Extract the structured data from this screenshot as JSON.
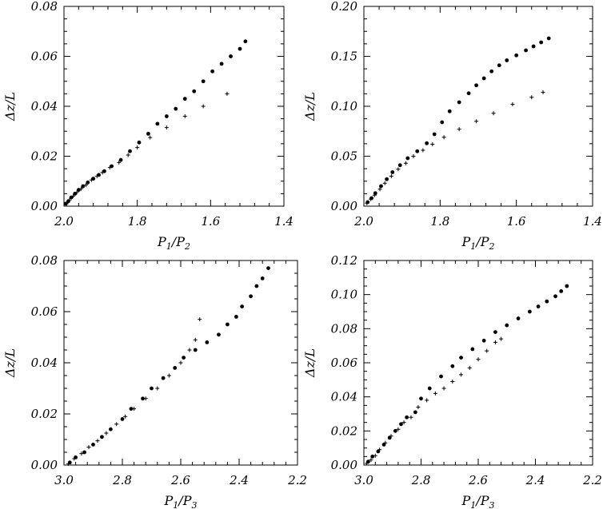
{
  "colors": {
    "background": "#ffffff",
    "ink": "#000000"
  },
  "chart_data": [
    {
      "type": "scatter",
      "title": "",
      "xlabel": "P1/P2",
      "ylabel": "Δz/L",
      "xlim": [
        2.0,
        1.4
      ],
      "ylim": [
        0.0,
        0.08
      ],
      "x_ticks": [
        "2.0",
        "1.8",
        "1.6",
        "1.4"
      ],
      "y_ticks": [
        "0.00",
        "0.02",
        "0.04",
        "0.06",
        "0.08"
      ],
      "grid": false,
      "series": [
        {
          "marker": "dot",
          "points": [
            [
              1.995,
              0.001
            ],
            [
              1.988,
              0.002
            ],
            [
              1.98,
              0.0035
            ],
            [
              1.97,
              0.005
            ],
            [
              1.96,
              0.0065
            ],
            [
              1.948,
              0.008
            ],
            [
              1.935,
              0.0095
            ],
            [
              1.92,
              0.011
            ],
            [
              1.905,
              0.0125
            ],
            [
              1.89,
              0.014
            ],
            [
              1.87,
              0.016
            ],
            [
              1.845,
              0.0185
            ],
            [
              1.82,
              0.022
            ],
            [
              1.795,
              0.0255
            ],
            [
              1.77,
              0.029
            ],
            [
              1.745,
              0.033
            ],
            [
              1.72,
              0.036
            ],
            [
              1.695,
              0.039
            ],
            [
              1.67,
              0.043
            ],
            [
              1.645,
              0.046
            ],
            [
              1.62,
              0.05
            ],
            [
              1.595,
              0.054
            ],
            [
              1.57,
              0.057
            ],
            [
              1.545,
              0.06
            ],
            [
              1.52,
              0.063
            ],
            [
              1.505,
              0.066
            ]
          ]
        },
        {
          "marker": "plus",
          "points": [
            [
              1.993,
              0.001
            ],
            [
              1.985,
              0.0025
            ],
            [
              1.975,
              0.004
            ],
            [
              1.965,
              0.0055
            ],
            [
              1.953,
              0.007
            ],
            [
              1.94,
              0.0085
            ],
            [
              1.925,
              0.0105
            ],
            [
              1.91,
              0.012
            ],
            [
              1.895,
              0.0135
            ],
            [
              1.875,
              0.0155
            ],
            [
              1.85,
              0.0175
            ],
            [
              1.825,
              0.0205
            ],
            [
              1.8,
              0.0235
            ],
            [
              1.765,
              0.0275
            ],
            [
              1.72,
              0.0315
            ],
            [
              1.67,
              0.036
            ],
            [
              1.62,
              0.04
            ],
            [
              1.555,
              0.045
            ]
          ]
        }
      ]
    },
    {
      "type": "scatter",
      "title": "",
      "xlabel": "P1/P2",
      "ylabel": "Δz/L",
      "xlim": [
        2.0,
        1.4
      ],
      "ylim": [
        0.0,
        0.2
      ],
      "x_ticks": [
        "2.0",
        "1.8",
        "1.6",
        "1.4"
      ],
      "y_ticks": [
        "0.00",
        "0.05",
        "0.10",
        "0.15",
        "0.20"
      ],
      "grid": false,
      "series": [
        {
          "marker": "dot",
          "points": [
            [
              1.99,
              0.004
            ],
            [
              1.98,
              0.008
            ],
            [
              1.97,
              0.013
            ],
            [
              1.955,
              0.02
            ],
            [
              1.94,
              0.027
            ],
            [
              1.925,
              0.034
            ],
            [
              1.905,
              0.041
            ],
            [
              1.885,
              0.048
            ],
            [
              1.86,
              0.055
            ],
            [
              1.835,
              0.063
            ],
            [
              1.815,
              0.072
            ],
            [
              1.795,
              0.084
            ],
            [
              1.775,
              0.095
            ],
            [
              1.75,
              0.104
            ],
            [
              1.725,
              0.113
            ],
            [
              1.705,
              0.121
            ],
            [
              1.685,
              0.128
            ],
            [
              1.665,
              0.135
            ],
            [
              1.645,
              0.141
            ],
            [
              1.625,
              0.146
            ],
            [
              1.6,
              0.151
            ],
            [
              1.575,
              0.156
            ],
            [
              1.555,
              0.16
            ],
            [
              1.535,
              0.164
            ],
            [
              1.515,
              0.168
            ]
          ]
        },
        {
          "marker": "plus",
          "points": [
            [
              1.992,
              0.003
            ],
            [
              1.982,
              0.007
            ],
            [
              1.972,
              0.011
            ],
            [
              1.958,
              0.017
            ],
            [
              1.945,
              0.023
            ],
            [
              1.928,
              0.03
            ],
            [
              1.91,
              0.037
            ],
            [
              1.89,
              0.043
            ],
            [
              1.87,
              0.05
            ],
            [
              1.845,
              0.056
            ],
            [
              1.82,
              0.062
            ],
            [
              1.79,
              0.069
            ],
            [
              1.75,
              0.077
            ],
            [
              1.705,
              0.085
            ],
            [
              1.66,
              0.093
            ],
            [
              1.61,
              0.102
            ],
            [
              1.56,
              0.109
            ],
            [
              1.53,
              0.114
            ]
          ]
        }
      ]
    },
    {
      "type": "scatter",
      "title": "",
      "xlabel": "P1/P3",
      "ylabel": "Δz/L",
      "xlim": [
        3.0,
        2.2
      ],
      "ylim": [
        0.0,
        0.08
      ],
      "x_ticks": [
        "3.0",
        "2.8",
        "2.6",
        "2.4",
        "2.2"
      ],
      "y_ticks": [
        "0.00",
        "0.02",
        "0.04",
        "0.06",
        "0.08"
      ],
      "grid": false,
      "series": [
        {
          "marker": "dot",
          "points": [
            [
              2.98,
              0.001
            ],
            [
              2.96,
              0.003
            ],
            [
              2.93,
              0.005
            ],
            [
              2.9,
              0.008
            ],
            [
              2.87,
              0.011
            ],
            [
              2.84,
              0.014
            ],
            [
              2.8,
              0.018
            ],
            [
              2.77,
              0.022
            ],
            [
              2.73,
              0.026
            ],
            [
              2.7,
              0.03
            ],
            [
              2.66,
              0.034
            ],
            [
              2.62,
              0.038
            ],
            [
              2.59,
              0.042
            ],
            [
              2.55,
              0.045
            ],
            [
              2.51,
              0.048
            ],
            [
              2.47,
              0.051
            ],
            [
              2.44,
              0.055
            ],
            [
              2.41,
              0.058
            ],
            [
              2.39,
              0.062
            ],
            [
              2.36,
              0.066
            ],
            [
              2.34,
              0.07
            ],
            [
              2.32,
              0.073
            ],
            [
              2.3,
              0.077
            ]
          ]
        },
        {
          "marker": "plus",
          "points": [
            [
              2.985,
              0.0005
            ],
            [
              2.965,
              0.0025
            ],
            [
              2.94,
              0.0045
            ],
            [
              2.915,
              0.007
            ],
            [
              2.885,
              0.0095
            ],
            [
              2.855,
              0.0125
            ],
            [
              2.82,
              0.016
            ],
            [
              2.79,
              0.019
            ],
            [
              2.76,
              0.022
            ],
            [
              2.72,
              0.026
            ],
            [
              2.68,
              0.03
            ],
            [
              2.64,
              0.035
            ],
            [
              2.6,
              0.04
            ],
            [
              2.57,
              0.045
            ],
            [
              2.55,
              0.049
            ],
            [
              2.535,
              0.057
            ]
          ]
        }
      ]
    },
    {
      "type": "scatter",
      "title": "",
      "xlabel": "P1/P3",
      "ylabel": "Δz/L",
      "xlim": [
        3.0,
        2.2
      ],
      "ylim": [
        0.0,
        0.12
      ],
      "x_ticks": [
        "3.0",
        "2.8",
        "2.6",
        "2.4",
        "2.2"
      ],
      "y_ticks": [
        "0.00",
        "0.02",
        "0.04",
        "0.06",
        "0.08",
        "0.10",
        "0.12"
      ],
      "grid": false,
      "series": [
        {
          "marker": "dot",
          "points": [
            [
              2.985,
              0.002
            ],
            [
              2.97,
              0.005
            ],
            [
              2.95,
              0.008
            ],
            [
              2.93,
              0.012
            ],
            [
              2.91,
              0.016
            ],
            [
              2.89,
              0.02
            ],
            [
              2.87,
              0.024
            ],
            [
              2.85,
              0.028
            ],
            [
              2.82,
              0.031
            ],
            [
              2.8,
              0.039
            ],
            [
              2.77,
              0.045
            ],
            [
              2.73,
              0.052
            ],
            [
              2.69,
              0.058
            ],
            [
              2.66,
              0.063
            ],
            [
              2.62,
              0.068
            ],
            [
              2.58,
              0.073
            ],
            [
              2.54,
              0.078
            ],
            [
              2.5,
              0.082
            ],
            [
              2.46,
              0.086
            ],
            [
              2.42,
              0.09
            ],
            [
              2.39,
              0.093
            ],
            [
              2.36,
              0.096
            ],
            [
              2.33,
              0.099
            ],
            [
              2.31,
              0.102
            ],
            [
              2.29,
              0.105
            ]
          ]
        },
        {
          "marker": "plus",
          "points": [
            [
              2.99,
              0.001
            ],
            [
              2.975,
              0.003
            ],
            [
              2.96,
              0.0055
            ],
            [
              2.945,
              0.009
            ],
            [
              2.925,
              0.013
            ],
            [
              2.905,
              0.017
            ],
            [
              2.88,
              0.021
            ],
            [
              2.86,
              0.025
            ],
            [
              2.835,
              0.028
            ],
            [
              2.81,
              0.034
            ],
            [
              2.78,
              0.038
            ],
            [
              2.75,
              0.042
            ],
            [
              2.72,
              0.045
            ],
            [
              2.69,
              0.049
            ],
            [
              2.66,
              0.053
            ],
            [
              2.63,
              0.057
            ],
            [
              2.6,
              0.062
            ],
            [
              2.57,
              0.067
            ],
            [
              2.54,
              0.072
            ],
            [
              2.52,
              0.074
            ]
          ]
        }
      ]
    }
  ]
}
